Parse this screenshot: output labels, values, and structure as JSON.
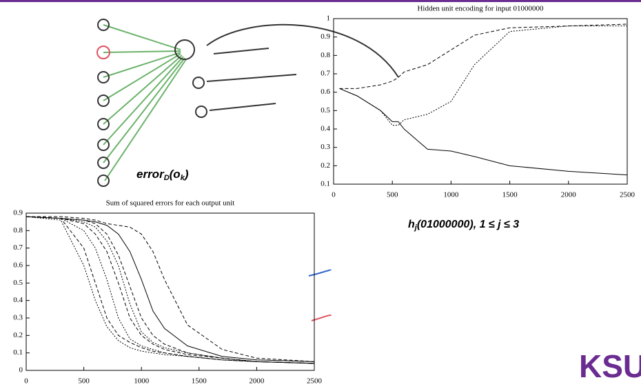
{
  "chart_data": [
    {
      "type": "line",
      "title": "Hidden unit encoding for input 01000000",
      "x": [
        50,
        200,
        400,
        500,
        550,
        600,
        800,
        1000,
        1200,
        1500,
        2000,
        2500
      ],
      "xlim": [
        0,
        2500
      ],
      "xticks": [
        0,
        500,
        1000,
        1500,
        2000,
        2500
      ],
      "ylim": [
        0.1,
        1
      ],
      "yticks": [
        0.1,
        0.2,
        0.3,
        0.4,
        0.5,
        0.6,
        0.7,
        0.8,
        0.9,
        1
      ],
      "series": [
        {
          "color": "#000000",
          "style": "solid",
          "values": [
            0.62,
            0.58,
            0.5,
            0.44,
            0.44,
            0.4,
            0.29,
            0.28,
            0.25,
            0.2,
            0.17,
            0.15
          ]
        },
        {
          "color": "#000000",
          "style": "dashed",
          "values": [
            0.62,
            0.62,
            0.64,
            0.66,
            0.68,
            0.71,
            0.75,
            0.83,
            0.91,
            0.95,
            0.96,
            0.97
          ]
        },
        {
          "color": "#000000",
          "style": "dotted",
          "values": [
            0.62,
            0.58,
            0.5,
            0.42,
            0.42,
            0.45,
            0.48,
            0.55,
            0.75,
            0.93,
            0.96,
            0.96
          ]
        }
      ]
    },
    {
      "type": "line",
      "title": "Sum of squared errors for each output unit",
      "x": [
        0,
        300,
        500,
        600,
        700,
        800,
        900,
        1000,
        1100,
        1200,
        1400,
        1700,
        2000,
        2500
      ],
      "xlim": [
        0,
        2500
      ],
      "xticks": [
        0,
        500,
        1000,
        1500,
        2000,
        2500
      ],
      "ylim": [
        0,
        0.9
      ],
      "yticks": [
        0,
        0.1,
        0.2,
        0.3,
        0.4,
        0.5,
        0.6,
        0.7,
        0.8,
        0.9
      ],
      "series": [
        {
          "color": "#000000",
          "style": "dotted",
          "values": [
            0.88,
            0.86,
            0.6,
            0.4,
            0.25,
            0.17,
            0.13,
            0.11,
            0.1,
            0.09,
            0.08,
            0.06,
            0.05,
            0.04
          ]
        },
        {
          "color": "#000000",
          "style": "dashed",
          "values": [
            0.88,
            0.87,
            0.7,
            0.5,
            0.3,
            0.2,
            0.16,
            0.13,
            0.11,
            0.1,
            0.08,
            0.06,
            0.05,
            0.04
          ]
        },
        {
          "color": "#000000",
          "style": "dotted",
          "values": [
            0.88,
            0.87,
            0.8,
            0.7,
            0.52,
            0.3,
            0.18,
            0.14,
            0.12,
            0.1,
            0.08,
            0.06,
            0.05,
            0.04
          ]
        },
        {
          "color": "#000000",
          "style": "dashed",
          "values": [
            0.88,
            0.87,
            0.84,
            0.78,
            0.68,
            0.5,
            0.3,
            0.2,
            0.15,
            0.12,
            0.09,
            0.07,
            0.05,
            0.04
          ]
        },
        {
          "color": "#000000",
          "style": "dotted",
          "values": [
            0.88,
            0.87,
            0.85,
            0.82,
            0.74,
            0.6,
            0.38,
            0.22,
            0.16,
            0.13,
            0.1,
            0.07,
            0.05,
            0.04
          ]
        },
        {
          "color": "#000000",
          "style": "dashed",
          "values": [
            0.88,
            0.87,
            0.86,
            0.84,
            0.78,
            0.66,
            0.48,
            0.3,
            0.2,
            0.15,
            0.1,
            0.07,
            0.05,
            0.04
          ]
        },
        {
          "color": "#000000",
          "style": "solid",
          "values": [
            0.88,
            0.87,
            0.86,
            0.85,
            0.83,
            0.78,
            0.68,
            0.52,
            0.34,
            0.24,
            0.14,
            0.08,
            0.06,
            0.05
          ]
        },
        {
          "color": "#000000",
          "style": "dashed",
          "values": [
            0.88,
            0.88,
            0.87,
            0.86,
            0.84,
            0.83,
            0.82,
            0.78,
            0.68,
            0.52,
            0.26,
            0.12,
            0.07,
            0.05
          ]
        }
      ]
    }
  ],
  "annotations": {
    "error_label": [
      "error",
      "D",
      "(o",
      "k",
      ")"
    ],
    "hidden_label": [
      "h",
      "j",
      "(01000000), 1 ≤ ",
      "j",
      " ≤ 3"
    ],
    "logo": "KSU"
  }
}
